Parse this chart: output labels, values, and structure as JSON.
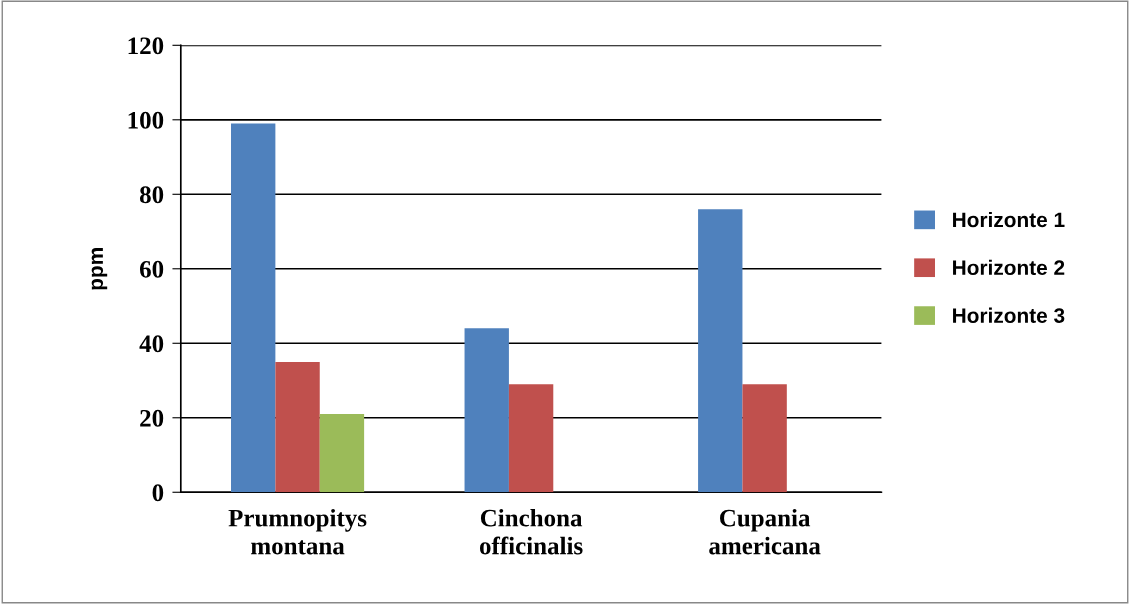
{
  "chart_data": {
    "type": "bar",
    "ylabel": "ppm",
    "categories": [
      "Prumnopitys\nmontana",
      "Cinchona\nofficinalis",
      "Cupania\namericana"
    ],
    "series": [
      {
        "name": "Horizonte 1",
        "color": "#4f81bd",
        "values": [
          99,
          44,
          76
        ]
      },
      {
        "name": "Horizonte 2",
        "color": "#c0504d",
        "values": [
          35,
          29,
          29
        ]
      },
      {
        "name": "Horizonte 3",
        "color": "#9bbb59",
        "values": [
          21,
          null,
          null
        ]
      }
    ],
    "ylim": [
      0,
      120
    ],
    "yticks": [
      0,
      20,
      40,
      60,
      80,
      100,
      120
    ],
    "grid": "y",
    "legend": "right"
  }
}
